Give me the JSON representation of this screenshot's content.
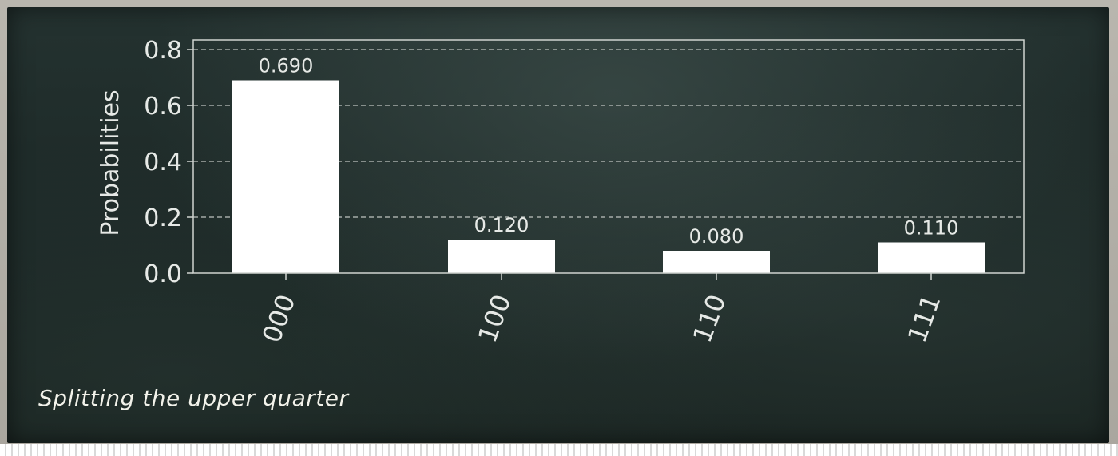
{
  "caption": "Splitting the upper quarter",
  "colors": {
    "board": "#1f2b29",
    "bar": "#ffffff",
    "text": "#e6e9e6",
    "grid": "#d0d4d0"
  },
  "chart_data": {
    "type": "bar",
    "categories": [
      "000",
      "100",
      "110",
      "111"
    ],
    "values": [
      0.69,
      0.12,
      0.08,
      0.11
    ],
    "data_labels": [
      "0.690",
      "0.120",
      "0.080",
      "0.110"
    ],
    "title": "",
    "xlabel": "",
    "ylabel": "Probabilities",
    "ylim": [
      0.0,
      0.8
    ],
    "yticks": [
      "0.0",
      "0.2",
      "0.4",
      "0.6",
      "0.8"
    ],
    "grid": "horizontal dashed",
    "x_tick_rotation": "rotated ~70°"
  }
}
